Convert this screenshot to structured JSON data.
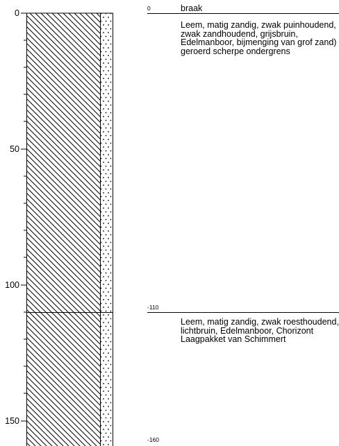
{
  "borehole": {
    "title": "braak",
    "top_depth_label": "0",
    "axis_ticks": [
      "0",
      "50",
      "100",
      "150"
    ],
    "layers": [
      {
        "top_label": "0",
        "description": "Leem, matig zandig, zwak puinhoudend, zwak zandhoudend, grijsbruin, Edelmanboor, bijmenging van grof zand) geroerd scherpe ondergrens"
      },
      {
        "top_label": "-110",
        "description": "Leem, matig zandig, zwak roesthoudend, lichtbruin, Edelmanboor, Chorizont Laagpakket van Schimmert"
      }
    ],
    "bottom_depth_label": "-160"
  }
}
